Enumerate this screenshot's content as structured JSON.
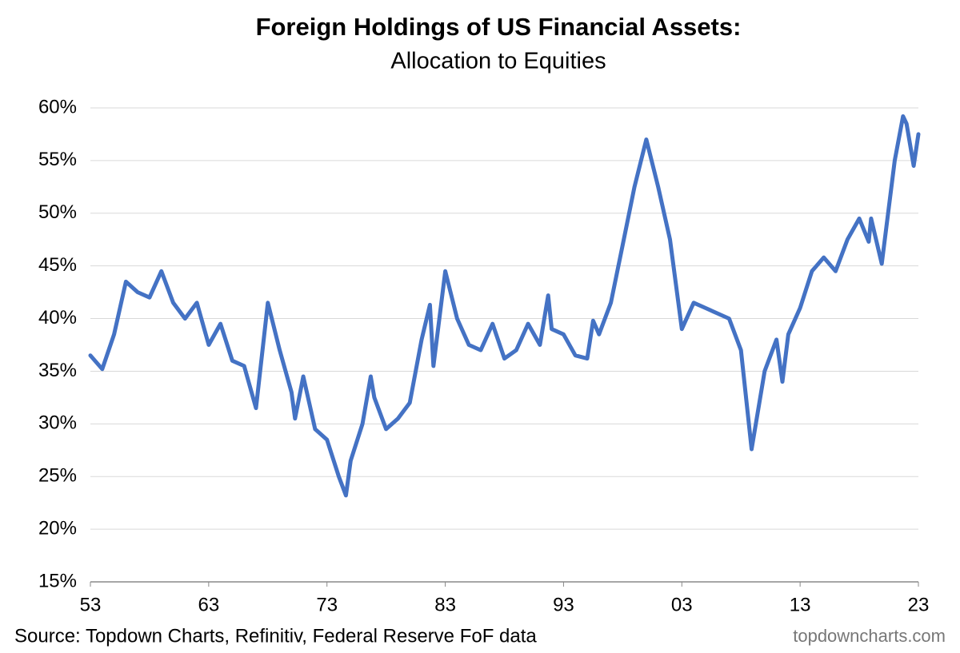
{
  "chart_data": {
    "type": "line",
    "title": "Foreign Holdings of US Financial Assets:",
    "subtitle": "Allocation to Equities",
    "source": "Source: Topdown Charts, Refinitiv, Federal Reserve FoF data",
    "watermark": "topdowncharts.com",
    "x": [
      1953,
      1954,
      1955,
      1956,
      1957,
      1958,
      1959,
      1960,
      1961,
      1962,
      1963,
      1964,
      1965,
      1966,
      1967,
      1968,
      1969,
      1970,
      1970.3,
      1971,
      1972,
      1973,
      1974,
      1974.6,
      1975,
      1976,
      1976.7,
      1977,
      1978,
      1979,
      1980,
      1981,
      1981.7,
      1982,
      1983,
      1984,
      1985,
      1986,
      1987,
      1988,
      1989,
      1990,
      1991,
      1991.7,
      1992,
      1993,
      1994,
      1995,
      1995.5,
      1996,
      1997,
      1998,
      1999,
      2000,
      2001,
      2002,
      2003,
      2004,
      2005,
      2006,
      2007,
      2008,
      2008.9,
      2010,
      2011,
      2011.5,
      2012,
      2013,
      2014,
      2015,
      2016,
      2017,
      2018,
      2018.8,
      2019,
      2019.9,
      2021,
      2021.7,
      2022,
      2022.6,
      2023
    ],
    "series": [
      {
        "name": "Allocation to Equities",
        "color": "#4472c4",
        "values": [
          36.5,
          35.2,
          38.5,
          43.5,
          42.5,
          42,
          44.5,
          41.5,
          40,
          41.5,
          37.5,
          39.5,
          36,
          35.5,
          31.5,
          41.5,
          37,
          33,
          30.5,
          34.5,
          29.5,
          28.5,
          25,
          23.2,
          26.5,
          30,
          34.5,
          32.5,
          29.5,
          30.5,
          32,
          38,
          41.3,
          35.5,
          44.5,
          40,
          37.5,
          37,
          39.5,
          36.2,
          37,
          39.5,
          37.5,
          42.2,
          39,
          38.5,
          36.5,
          36.2,
          39.8,
          38.5,
          41.5,
          47,
          52.5,
          57,
          52.5,
          47.5,
          39,
          41.5,
          41,
          40.5,
          40,
          37,
          27.6,
          35,
          38,
          34,
          38.5,
          41,
          44.5,
          45.8,
          44.5,
          47.5,
          49.5,
          47.3,
          49.5,
          45.2,
          55,
          59.2,
          58.5,
          54.5,
          57.5
        ]
      }
    ],
    "xlim": [
      1953,
      2023
    ],
    "xticks": [
      {
        "value": 1953,
        "label": "53"
      },
      {
        "value": 1963,
        "label": "63"
      },
      {
        "value": 1973,
        "label": "73"
      },
      {
        "value": 1983,
        "label": "83"
      },
      {
        "value": 1993,
        "label": "93"
      },
      {
        "value": 2003,
        "label": "03"
      },
      {
        "value": 2013,
        "label": "13"
      },
      {
        "value": 2023,
        "label": "23"
      }
    ],
    "ylim": [
      15,
      60
    ],
    "yticks": [
      {
        "value": 15,
        "label": "15%"
      },
      {
        "value": 20,
        "label": "20%"
      },
      {
        "value": 25,
        "label": "25%"
      },
      {
        "value": 30,
        "label": "30%"
      },
      {
        "value": 35,
        "label": "35%"
      },
      {
        "value": 40,
        "label": "40%"
      },
      {
        "value": 45,
        "label": "45%"
      },
      {
        "value": 50,
        "label": "50%"
      },
      {
        "value": 55,
        "label": "55%"
      },
      {
        "value": 60,
        "label": "60%"
      }
    ],
    "grid": true
  }
}
